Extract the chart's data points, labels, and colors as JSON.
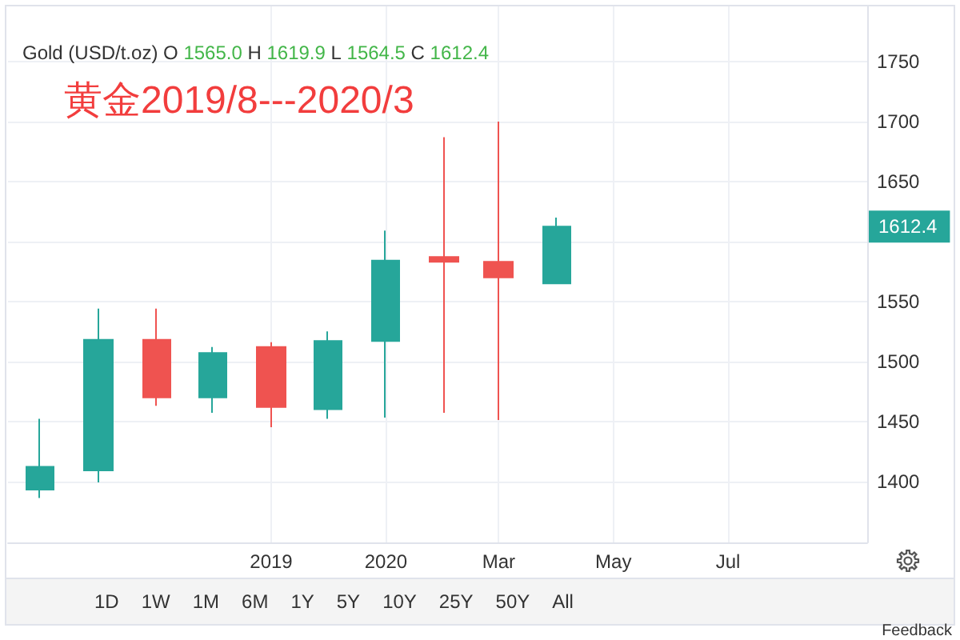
{
  "chart_data": {
    "type": "candlestick",
    "title": "Gold (USD/t.oz)",
    "subtitle": "O 1565.0 H 1619.9 L 1564.5 C 1612.4",
    "x": [
      "2019-07",
      "2019-08",
      "2019-09",
      "2019-10",
      "2019-11",
      "2019-12",
      "2020-01",
      "2020-02",
      "2020-03",
      "2020-04"
    ],
    "ohlc": [
      [
        1393,
        1452,
        1386,
        1412
      ],
      [
        1409,
        1544,
        1399,
        1518
      ],
      [
        1518,
        1544,
        1463,
        1470
      ],
      [
        1470,
        1512,
        1457,
        1507
      ],
      [
        1512,
        1516,
        1445,
        1462
      ],
      [
        1460,
        1525,
        1452,
        1517
      ],
      [
        1517,
        1609,
        1453,
        1584
      ],
      [
        1587,
        1687,
        1457,
        1583
      ],
      [
        1583,
        1700,
        1451,
        1570
      ],
      [
        1565.0,
        1619.9,
        1564.5,
        1612.4
      ]
    ],
    "colors": [
      "#26a69a",
      "#26a69a",
      "#ef5350",
      "#26a69a",
      "#ef5350",
      "#26a69a",
      "#26a69a",
      "#ef5350",
      "#ef5350",
      "#26a69a"
    ],
    "xlim": [
      "2019-06-14",
      "2020-09-13"
    ],
    "xticks": [
      {
        "value": "2019-11",
        "label": "2019"
      },
      {
        "value": "2020-01",
        "label": "2020"
      },
      {
        "value": "2020-03",
        "label": "Mar"
      },
      {
        "value": "2020-05",
        "label": "May"
      },
      {
        "value": "2020-07",
        "label": "Jul"
      }
    ],
    "ylim": [
      1349,
      1796
    ],
    "yticks": [
      1400,
      1450,
      1500,
      1550,
      {
        "value": 1600,
        "label": null
      },
      1650,
      1700,
      1750
    ],
    "grid": true,
    "annotations": [
      "黄金2019/8---2020/3",
      "1612.4",
      "1D",
      "1W",
      "1M",
      "6M",
      "1Y",
      "5Y",
      "10Y",
      "25Y",
      "50Y",
      "All",
      "Feedback"
    ]
  }
}
